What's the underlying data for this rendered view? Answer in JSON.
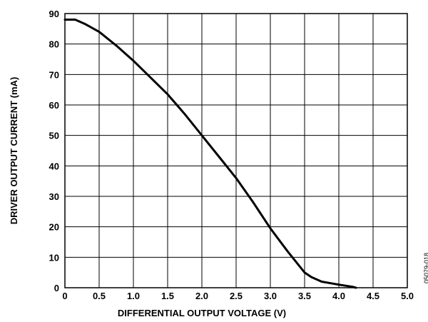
{
  "chart_data": {
    "type": "line",
    "xlabel": "DIFFERENTIAL OUTPUT VOLTAGE (V)",
    "ylabel": "DRIVER OUTPUT CURRENT (mA)",
    "xlim": [
      0,
      5.0
    ],
    "ylim": [
      0,
      90
    ],
    "x_ticks": [
      "0",
      "0.5",
      "1.0",
      "1.5",
      "2.0",
      "2.5",
      "3.0",
      "3.5",
      "4.0",
      "4.5",
      "5.0"
    ],
    "y_ticks": [
      "0",
      "10",
      "20",
      "30",
      "40",
      "50",
      "60",
      "70",
      "80",
      "90"
    ],
    "grid": true,
    "figure_id": "05079-018",
    "series": [
      {
        "x": [
          0,
          0.15,
          0.3,
          0.5,
          0.75,
          1.0,
          1.25,
          1.5,
          1.75,
          2.0,
          2.25,
          2.5,
          2.75,
          3.0,
          3.25,
          3.5,
          3.6,
          3.75,
          4.0,
          4.2,
          4.25
        ],
        "y": [
          88,
          88,
          86.5,
          84,
          79.5,
          74.5,
          69,
          63.5,
          57,
          50,
          43,
          36,
          28,
          19.5,
          12,
          5,
          3.5,
          2,
          1,
          0.3,
          0
        ]
      }
    ]
  }
}
